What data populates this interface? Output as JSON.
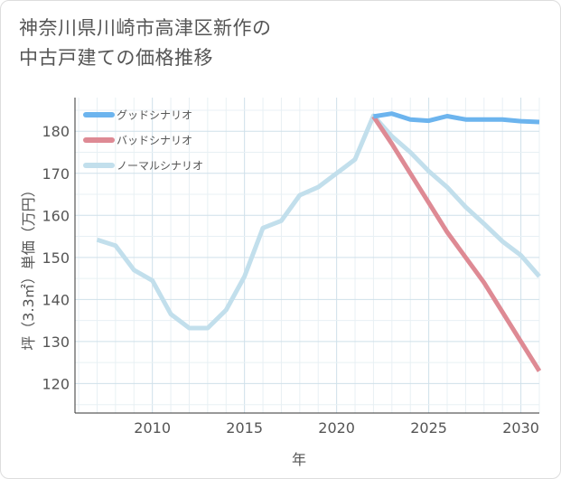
{
  "chart_data": {
    "type": "line",
    "title": "神奈川県川崎市高津区新作の\n中古戸建ての価格推移",
    "xlabel": "年",
    "ylabel": "坪（3.3㎡）単価（万円）",
    "xlim": [
      2005.8,
      2031
    ],
    "ylim": [
      113,
      188
    ],
    "x_ticks": [
      2010,
      2015,
      2020,
      2025,
      2030
    ],
    "y_ticks": [
      120,
      130,
      140,
      150,
      160,
      170,
      180
    ],
    "grid": true,
    "legend_position": "top-left",
    "series": [
      {
        "name": "グッドシナリオ",
        "color": "#6cb4ee",
        "x": [
          2022,
          2023,
          2024,
          2025,
          2026,
          2027,
          2028,
          2029,
          2030,
          2031
        ],
        "y": [
          183.5,
          184.2,
          182.8,
          182.5,
          183.6,
          182.8,
          182.8,
          182.8,
          182.4,
          182.2
        ]
      },
      {
        "name": "バッドシナリオ",
        "color": "#de8a94",
        "x": [
          2022,
          2023,
          2024,
          2025,
          2026,
          2027,
          2028,
          2029,
          2030,
          2031
        ],
        "y": [
          183.5,
          177.0,
          170.0,
          163.0,
          156.0,
          150.0,
          144.0,
          137.0,
          130.0,
          123.0
        ]
      },
      {
        "name": "ノーマルシナリオ",
        "color": "#c2dfec",
        "x": [
          2007,
          2008,
          2009,
          2010,
          2011,
          2012,
          2013,
          2014,
          2015,
          2016,
          2017,
          2018,
          2019,
          2020,
          2021,
          2022,
          2023,
          2024,
          2025,
          2026,
          2027,
          2028,
          2029,
          2030,
          2031
        ],
        "y": [
          154.2,
          152.8,
          147.0,
          144.5,
          136.5,
          133.2,
          133.2,
          137.5,
          145.5,
          157.0,
          158.7,
          164.8,
          166.7,
          170.0,
          173.3,
          183.7,
          178.8,
          175.0,
          170.5,
          166.7,
          162.0,
          158.0,
          153.8,
          150.5,
          145.5
        ]
      }
    ]
  }
}
